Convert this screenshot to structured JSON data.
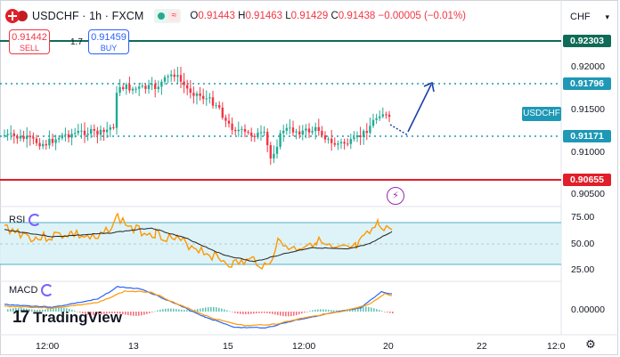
{
  "header": {
    "title": "USDCHF · 1h · FXCM",
    "ohlc": [
      {
        "key": "O",
        "value": "0.91443"
      },
      {
        "key": "H",
        "value": "0.91463"
      },
      {
        "key": "L",
        "value": "0.91429"
      },
      {
        "key": "C",
        "value": "0.91438"
      }
    ],
    "change": "−0.00005 (−0.01%)"
  },
  "trade": {
    "sell_price": "0.91442",
    "sell_label": "SELL",
    "spread": "1.7",
    "buy_price": "0.91459",
    "buy_label": "BUY"
  },
  "axis": {
    "currency": "CHF",
    "ticks": [
      "0.92000",
      "0.91500",
      "0.91000",
      "0.90500"
    ],
    "tags": [
      {
        "value": "0.92303",
        "color": "#0f6b57"
      },
      {
        "value": "0.91796",
        "color": "#1e98b6"
      },
      {
        "value": "0.91171",
        "color": "#1e98b6"
      },
      {
        "value": "0.90655",
        "color": "#e01f2a"
      }
    ],
    "symbol_tag": "USDCHF"
  },
  "rsi": {
    "label": "RSI",
    "ticks": [
      "75.00",
      "50.00",
      "25.00"
    ]
  },
  "macd": {
    "label": "MACD",
    "ticks": [
      "0.00000"
    ]
  },
  "time_axis": [
    "12:00",
    "13",
    "15",
    "12:00",
    "20",
    "22",
    "12:0"
  ],
  "logo": {
    "mark": "17",
    "text": "TradingView"
  },
  "colors": {
    "up": "#22ab94",
    "down": "#f23645",
    "resistance": "#0f6b57",
    "support": "#e01f2a",
    "dotted": "#1e98b6",
    "arrow": "#1a3fa8",
    "rsi": "#ff9800",
    "macd": "#2962ff"
  }
}
